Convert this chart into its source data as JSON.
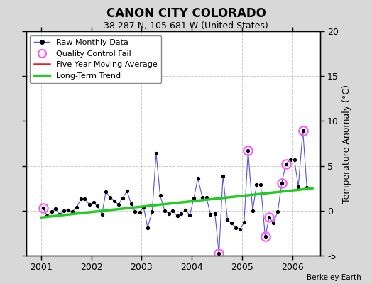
{
  "title": "CANON CITY COLORADO",
  "subtitle": "38.287 N, 105.681 W (United States)",
  "ylabel": "Temperature Anomaly (°C)",
  "credit": "Berkeley Earth",
  "ylim": [
    -5,
    20
  ],
  "yticks": [
    -5,
    0,
    5,
    10,
    15,
    20
  ],
  "xlim": [
    2000.7,
    2006.55
  ],
  "bg_color": "#d8d8d8",
  "plot_bg_color": "#ffffff",
  "raw_x": [
    2001.04,
    2001.12,
    2001.21,
    2001.29,
    2001.37,
    2001.46,
    2001.54,
    2001.62,
    2001.71,
    2001.79,
    2001.87,
    2001.96,
    2002.04,
    2002.12,
    2002.21,
    2002.29,
    2002.37,
    2002.46,
    2002.54,
    2002.62,
    2002.71,
    2002.79,
    2002.87,
    2002.96,
    2003.04,
    2003.12,
    2003.21,
    2003.29,
    2003.37,
    2003.46,
    2003.54,
    2003.62,
    2003.71,
    2003.79,
    2003.87,
    2003.96,
    2004.04,
    2004.12,
    2004.21,
    2004.29,
    2004.37,
    2004.46,
    2004.54,
    2004.62,
    2004.71,
    2004.79,
    2004.87,
    2004.96,
    2005.04,
    2005.12,
    2005.21,
    2005.29,
    2005.37,
    2005.46,
    2005.54,
    2005.62,
    2005.71,
    2005.79,
    2005.87,
    2005.96,
    2006.04,
    2006.12,
    2006.21,
    2006.29
  ],
  "raw_y": [
    0.3,
    -0.6,
    -0.1,
    0.2,
    -0.4,
    0.0,
    0.1,
    -0.1,
    0.4,
    1.3,
    1.3,
    0.7,
    0.9,
    0.5,
    -0.4,
    2.1,
    1.5,
    1.1,
    0.7,
    1.4,
    2.2,
    0.8,
    -0.1,
    -0.2,
    0.4,
    -1.9,
    -0.1,
    6.4,
    1.7,
    0.0,
    -0.3,
    0.0,
    -0.6,
    -0.3,
    0.1,
    -0.5,
    1.4,
    3.6,
    1.5,
    1.5,
    -0.4,
    -0.3,
    -4.8,
    3.9,
    -1.0,
    -1.4,
    -1.9,
    -2.1,
    -1.3,
    6.7,
    0.0,
    2.9,
    2.9,
    -2.9,
    -0.7,
    -1.4,
    -0.1,
    3.1,
    5.2,
    5.7,
    5.7,
    2.7,
    8.9,
    2.6
  ],
  "qc_fail_indices": [
    0,
    42,
    49,
    53,
    54,
    57,
    58,
    62
  ],
  "trend_x": [
    2001.0,
    2006.4
  ],
  "trend_y": [
    -0.75,
    2.5
  ],
  "raw_line_color": "#5555dd",
  "raw_marker_color": "#000000",
  "qc_color": "#ff55ff",
  "trend_color": "#22cc22",
  "moving_avg_color": "#dd2222",
  "grid_color": "#cccccc",
  "xtick_positions": [
    2001,
    2002,
    2003,
    2004,
    2005,
    2006
  ],
  "top_tick_positions": [
    2001,
    2002,
    2003,
    2004,
    2005,
    2006
  ]
}
